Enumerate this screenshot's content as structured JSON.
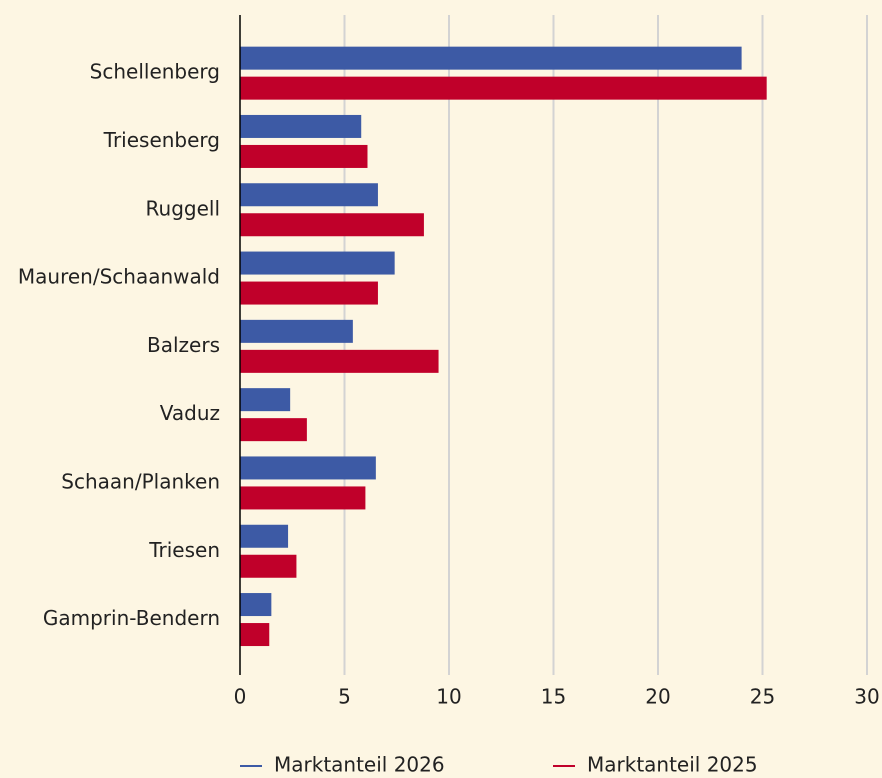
{
  "chart_data": {
    "type": "hbar",
    "categories": [
      "Schellenberg",
      "Triesenberg",
      "Ruggell",
      "Mauren/Schaanwald",
      "Balzers",
      "Vaduz",
      "Schaan/Planken",
      "Triesen",
      "Gamprin-Bendern"
    ],
    "series": [
      {
        "name": "Marktanteil 2026",
        "color": "#3d5aa5",
        "values": [
          24.0,
          5.8,
          6.6,
          7.4,
          5.4,
          2.4,
          6.5,
          2.3,
          1.5
        ]
      },
      {
        "name": "Marktanteil 2025",
        "color": "#c0002a",
        "values": [
          25.2,
          6.1,
          8.8,
          6.6,
          9.5,
          3.2,
          6.0,
          2.7,
          1.4
        ]
      }
    ],
    "xlim": [
      0,
      30
    ],
    "xticks": [
      0,
      5,
      10,
      15,
      20,
      25,
      30
    ],
    "grid": true,
    "legend": "bottom"
  }
}
